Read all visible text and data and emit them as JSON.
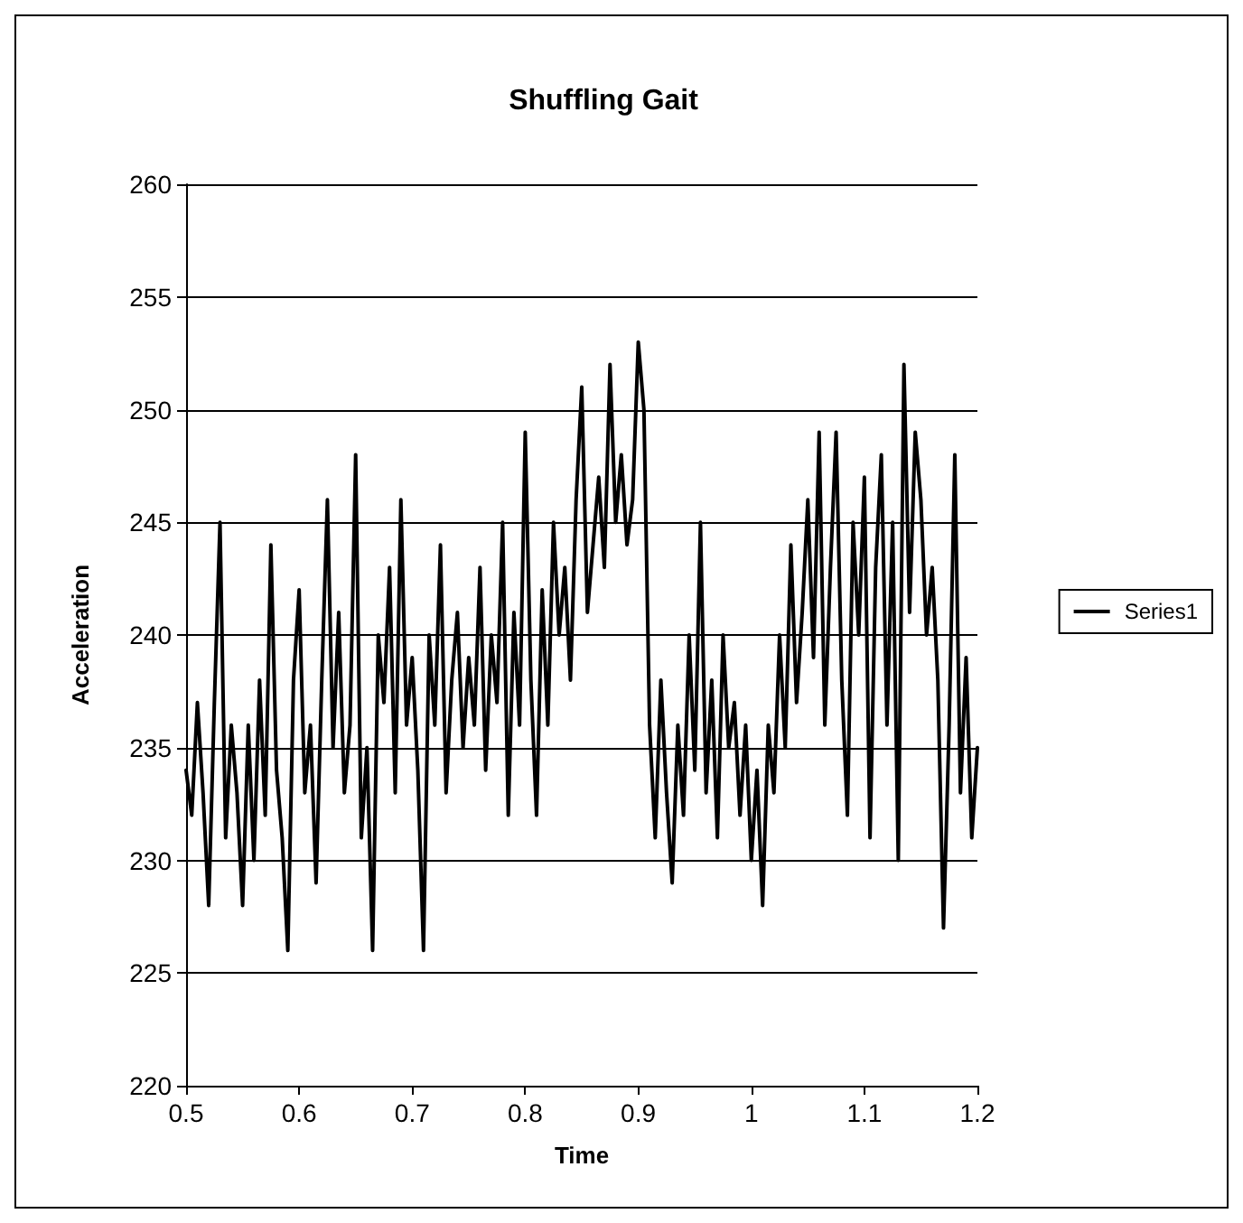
{
  "chart_data": {
    "type": "line",
    "title": "Shuffling Gait",
    "xlabel": "Time",
    "ylabel": "Acceleration",
    "x": [
      0.5,
      0.505,
      0.51,
      0.515,
      0.52,
      0.525,
      0.53,
      0.535,
      0.54,
      0.545,
      0.55,
      0.555,
      0.56,
      0.565,
      0.57,
      0.575,
      0.58,
      0.585,
      0.59,
      0.595,
      0.6,
      0.605,
      0.61,
      0.615,
      0.62,
      0.625,
      0.63,
      0.635,
      0.64,
      0.645,
      0.65,
      0.655,
      0.66,
      0.665,
      0.67,
      0.675,
      0.68,
      0.685,
      0.69,
      0.695,
      0.7,
      0.705,
      0.71,
      0.715,
      0.72,
      0.725,
      0.73,
      0.735,
      0.74,
      0.745,
      0.75,
      0.755,
      0.76,
      0.765,
      0.77,
      0.775,
      0.78,
      0.785,
      0.79,
      0.795,
      0.8,
      0.805,
      0.81,
      0.815,
      0.82,
      0.825,
      0.83,
      0.835,
      0.84,
      0.845,
      0.85,
      0.855,
      0.86,
      0.865,
      0.87,
      0.875,
      0.88,
      0.885,
      0.89,
      0.895,
      0.9,
      0.905,
      0.91,
      0.915,
      0.92,
      0.925,
      0.93,
      0.935,
      0.94,
      0.945,
      0.95,
      0.955,
      0.96,
      0.965,
      0.97,
      0.975,
      0.98,
      0.985,
      0.99,
      0.995,
      1.0,
      1.005,
      1.01,
      1.015,
      1.02,
      1.025,
      1.03,
      1.035,
      1.04,
      1.045,
      1.05,
      1.055,
      1.06,
      1.065,
      1.07,
      1.075,
      1.08,
      1.085,
      1.09,
      1.095,
      1.1,
      1.105,
      1.11,
      1.115,
      1.12,
      1.125,
      1.13,
      1.135,
      1.14,
      1.145,
      1.15,
      1.155,
      1.16,
      1.165,
      1.17,
      1.175,
      1.18,
      1.185,
      1.19,
      1.195,
      1.2
    ],
    "series": [
      {
        "name": "Series1",
        "color": "#000000",
        "values": [
          234,
          232,
          237,
          233,
          228,
          237,
          245,
          231,
          236,
          233,
          228,
          236,
          230,
          238,
          232,
          244,
          234,
          231,
          226,
          238,
          242,
          233,
          236,
          229,
          238,
          246,
          235,
          241,
          233,
          236,
          248,
          231,
          235,
          226,
          240,
          237,
          243,
          233,
          246,
          236,
          239,
          234,
          226,
          240,
          236,
          244,
          233,
          238,
          241,
          235,
          239,
          236,
          243,
          234,
          240,
          237,
          245,
          232,
          241,
          236,
          249,
          238,
          232,
          242,
          236,
          245,
          240,
          243,
          238,
          246,
          251,
          241,
          244,
          247,
          243,
          252,
          245,
          248,
          244,
          246,
          253,
          250,
          236,
          231,
          238,
          233,
          229,
          236,
          232,
          240,
          234,
          245,
          233,
          238,
          231,
          240,
          235,
          237,
          232,
          236,
          230,
          234,
          228,
          236,
          233,
          240,
          235,
          244,
          237,
          241,
          246,
          239,
          249,
          236,
          243,
          249,
          238,
          232,
          245,
          240,
          247,
          231,
          243,
          248,
          236,
          245,
          230,
          252,
          241,
          249,
          246,
          240,
          243,
          238,
          227,
          236,
          248,
          233,
          239,
          231,
          235
        ]
      }
    ],
    "xlim": [
      0.5,
      1.2
    ],
    "xticks": [
      0.5,
      0.6,
      0.7,
      0.8,
      0.9,
      1,
      1.1,
      1.2
    ],
    "ylim": [
      220,
      260
    ],
    "yticks": [
      220,
      225,
      230,
      235,
      240,
      245,
      250,
      255,
      260
    ],
    "grid": "y",
    "legend": "right",
    "marker": "none",
    "line_style": "solid"
  }
}
